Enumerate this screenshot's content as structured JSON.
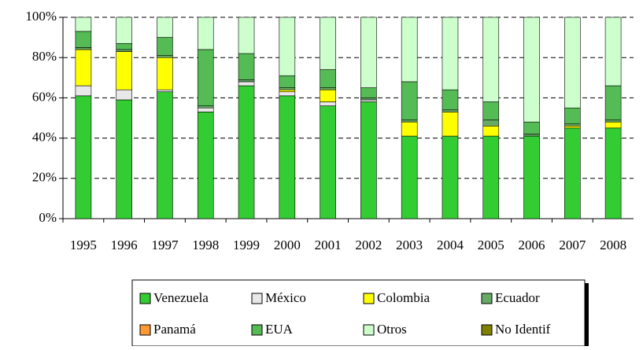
{
  "chart_data": {
    "type": "stacked_bar",
    "categories": [
      "1995",
      "1996",
      "1997",
      "1998",
      "1999",
      "2000",
      "2001",
      "2002",
      "2003",
      "2004",
      "2005",
      "2006",
      "2007",
      "2008"
    ],
    "series": [
      {
        "name": "Venezuela",
        "color": "#33cc33",
        "values": [
          61,
          59,
          63,
          53,
          66,
          61,
          56,
          58,
          41,
          41,
          41,
          41,
          45,
          45
        ]
      },
      {
        "name": "México",
        "color": "#e8e8e8",
        "values": [
          5,
          5,
          1,
          2,
          2,
          2,
          2,
          1,
          0,
          0,
          0,
          0,
          0,
          0
        ]
      },
      {
        "name": "Colombia",
        "color": "#ffff00",
        "values": [
          18,
          19,
          16,
          0,
          0,
          1,
          6,
          0,
          7,
          12,
          5,
          0,
          1,
          3
        ]
      },
      {
        "name": "Ecuador",
        "color": "#66aa66",
        "values": [
          1,
          1,
          1,
          1,
          1,
          1,
          1,
          1,
          1,
          1,
          3,
          1,
          1,
          1
        ]
      },
      {
        "name": "Panamá",
        "color": "#ff9933",
        "values": [
          0,
          0,
          0,
          0,
          0,
          0,
          0,
          0,
          0,
          0,
          0,
          0,
          0,
          0
        ]
      },
      {
        "name": "EUA",
        "color": "#55bb55",
        "values": [
          8,
          3,
          9,
          28,
          13,
          6,
          9,
          5,
          19,
          10,
          9,
          6,
          8,
          17
        ]
      },
      {
        "name": "Otros",
        "color": "#ccffcc",
        "values": [
          7,
          13,
          10,
          16,
          18,
          29,
          26,
          35,
          32,
          36,
          42,
          52,
          45,
          34
        ]
      },
      {
        "name": "No Identif",
        "color": "#808000",
        "values": [
          0,
          0,
          0,
          0,
          0,
          0,
          0,
          0,
          0,
          0,
          0,
          0,
          0,
          0
        ]
      }
    ],
    "ylim": [
      0,
      100
    ],
    "yticks": [
      {
        "value": 0,
        "label": "0%"
      },
      {
        "value": 20,
        "label": "20%"
      },
      {
        "value": 40,
        "label": "40%"
      },
      {
        "value": 60,
        "label": "60%"
      },
      {
        "value": 80,
        "label": "80%"
      },
      {
        "value": 100,
        "label": "100%"
      }
    ],
    "grid": true
  }
}
